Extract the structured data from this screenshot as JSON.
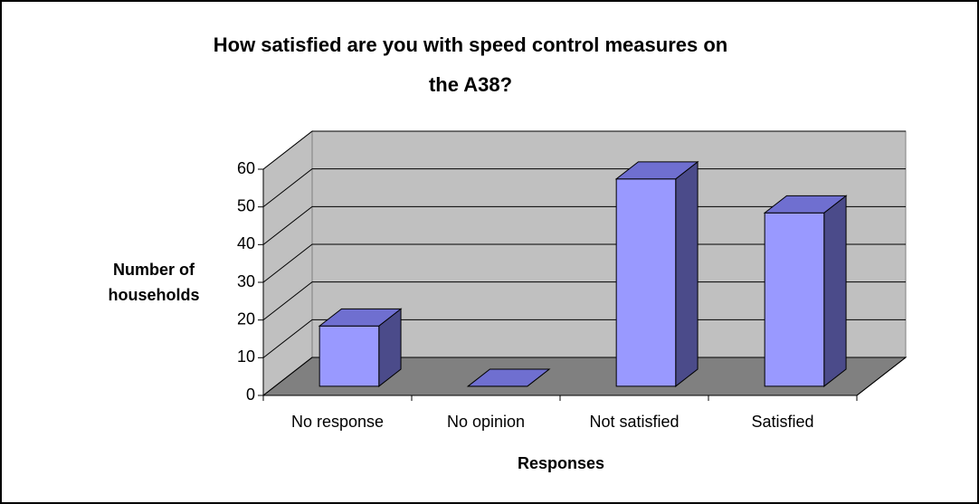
{
  "chart_data": {
    "type": "bar",
    "title": "How satisfied are you with speed control measures on the A38?",
    "ylabel": "Number of households",
    "xlabel": "Responses",
    "categories": [
      "No response",
      "No opinion",
      "Not satisfied",
      "Satisfied"
    ],
    "values": [
      16,
      0,
      55,
      46
    ],
    "color": "#9999ff",
    "ylim": [
      0,
      60
    ],
    "yticks": [
      0,
      10,
      20,
      30,
      40,
      50,
      60
    ],
    "grid": true
  }
}
